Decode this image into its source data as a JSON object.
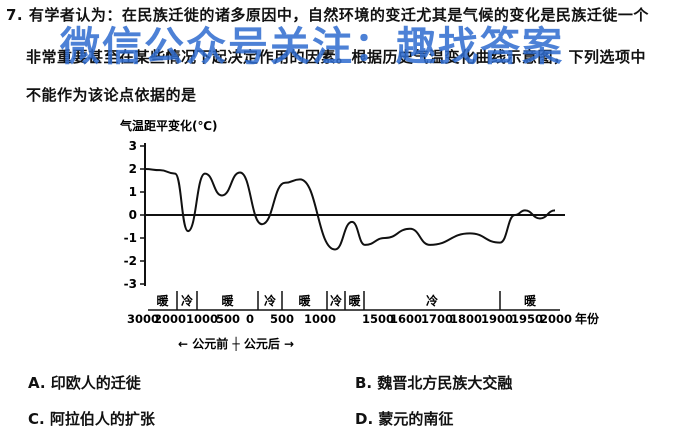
{
  "question": {
    "line1": "7. 有学者认为：在民族迁徙的诸多原因中，自然环境的变迁尤其是气候的变化是民族迁徙一个",
    "line2": "非常重要甚至在某些情况下起决定作用的因素。根据历史气温变化曲线示意图，下列选项中",
    "line3": "不能作为该论点依据的是"
  },
  "watermark": "微信公众号关注：趣找答案",
  "chart_data": {
    "type": "line",
    "ylabel": "气温距平变化(℃)",
    "ylim": [
      -3,
      3
    ],
    "yticks": [
      3,
      2,
      1,
      0,
      -1,
      -2,
      -3
    ],
    "xticks": [
      "3000",
      "2000",
      "1000",
      "500",
      "0",
      "500",
      "1000",
      "1500",
      "1600",
      "1700",
      "1800",
      "1900",
      "1950",
      "2000"
    ],
    "xunit": "年份",
    "era_note": "← 公元前 ┼ 公元后 →",
    "periods": [
      "暖",
      "冷",
      "暖",
      "冷",
      "暖",
      "冷",
      "暖",
      "冷",
      "暖"
    ],
    "series": [
      {
        "values": [
          2.0,
          1.95,
          1.8,
          -0.7,
          1.8,
          0.85,
          1.85,
          -0.4,
          1.4,
          1.55,
          -1.5,
          -0.3,
          -1.3,
          -1.0,
          -0.6,
          -1.3,
          -0.8,
          -1.2,
          0.0,
          0.2,
          -0.15,
          0.2
        ]
      }
    ]
  },
  "options": {
    "A": "A. 印欧人的迁徙",
    "B": "B. 魏晋北方民族大交融",
    "C": "C. 阿拉伯人的扩张",
    "D": "D. 蒙元的南征"
  }
}
